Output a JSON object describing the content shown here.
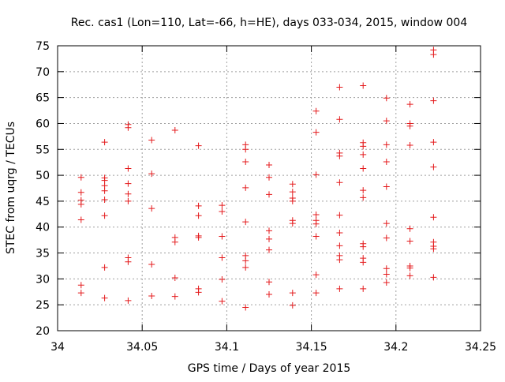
{
  "chart_data": {
    "type": "scatter",
    "title": "Rec. cas1 (Lon=110, Lat=-66, h=HE), days 033-034, 2015, window 004",
    "xlabel": "GPS time / Days of year 2015",
    "ylabel": "STEC from uqrg / TECUs",
    "xlim": [
      34,
      34.25
    ],
    "ylim": [
      20,
      75
    ],
    "xticks": [
      34,
      34.05,
      34.1,
      34.15,
      34.2,
      34.25
    ],
    "xtick_labels": [
      "34",
      "34.05",
      "34.1",
      "34.15",
      "34.2",
      "34.25"
    ],
    "yticks": [
      20,
      25,
      30,
      35,
      40,
      45,
      50,
      55,
      60,
      65,
      70,
      75
    ],
    "ytick_labels": [
      "20",
      "25",
      "30",
      "35",
      "40",
      "45",
      "50",
      "55",
      "60",
      "65",
      "70",
      "75"
    ],
    "grid": true,
    "marker": "+",
    "color": "#e41a1c",
    "series": [
      {
        "name": "STEC",
        "points": [
          [
            34.0139,
            49.6
          ],
          [
            34.0139,
            46.7
          ],
          [
            34.0139,
            45.2
          ],
          [
            34.0139,
            44.4
          ],
          [
            34.0139,
            41.4
          ],
          [
            34.0139,
            28.8
          ],
          [
            34.0139,
            27.3
          ],
          [
            34.0278,
            56.4
          ],
          [
            34.0278,
            49.5
          ],
          [
            34.0278,
            49.0
          ],
          [
            34.0278,
            48.0
          ],
          [
            34.0278,
            47.0
          ],
          [
            34.0278,
            45.3
          ],
          [
            34.0278,
            42.2
          ],
          [
            34.0278,
            32.2
          ],
          [
            34.0278,
            26.3
          ],
          [
            34.0417,
            59.8
          ],
          [
            34.0417,
            59.2
          ],
          [
            34.0417,
            51.3
          ],
          [
            34.0417,
            48.4
          ],
          [
            34.0417,
            46.4
          ],
          [
            34.0417,
            45.0
          ],
          [
            34.0417,
            34.1
          ],
          [
            34.0417,
            33.3
          ],
          [
            34.0417,
            25.8
          ],
          [
            34.0556,
            56.8
          ],
          [
            34.0556,
            50.3
          ],
          [
            34.0556,
            43.6
          ],
          [
            34.0556,
            32.8
          ],
          [
            34.0556,
            26.7
          ],
          [
            34.0694,
            58.7
          ],
          [
            34.0694,
            38.0
          ],
          [
            34.0694,
            37.1
          ],
          [
            34.0694,
            30.2
          ],
          [
            34.0694,
            26.6
          ],
          [
            34.0833,
            55.7
          ],
          [
            34.0833,
            44.1
          ],
          [
            34.0833,
            42.2
          ],
          [
            34.0833,
            38.3
          ],
          [
            34.0833,
            38.0
          ],
          [
            34.0833,
            28.1
          ],
          [
            34.0833,
            27.4
          ],
          [
            34.0972,
            44.2
          ],
          [
            34.0972,
            43.0
          ],
          [
            34.0972,
            38.2
          ],
          [
            34.0972,
            34.1
          ],
          [
            34.0972,
            29.9
          ],
          [
            34.0972,
            25.7
          ],
          [
            34.1111,
            55.9
          ],
          [
            34.1111,
            55.0
          ],
          [
            34.1111,
            52.6
          ],
          [
            34.1111,
            47.6
          ],
          [
            34.1111,
            41.0
          ],
          [
            34.1111,
            34.5
          ],
          [
            34.1111,
            33.5
          ],
          [
            34.1111,
            32.2
          ],
          [
            34.1111,
            24.5
          ],
          [
            34.125,
            52.0
          ],
          [
            34.125,
            49.6
          ],
          [
            34.125,
            46.3
          ],
          [
            34.125,
            39.3
          ],
          [
            34.125,
            37.7
          ],
          [
            34.125,
            35.6
          ],
          [
            34.125,
            29.4
          ],
          [
            34.125,
            27.0
          ],
          [
            34.1389,
            48.3
          ],
          [
            34.1389,
            46.8
          ],
          [
            34.1389,
            45.6
          ],
          [
            34.1389,
            45.0
          ],
          [
            34.1389,
            41.3
          ],
          [
            34.1389,
            40.7
          ],
          [
            34.1389,
            27.3
          ],
          [
            34.1389,
            24.9
          ],
          [
            34.1528,
            62.4
          ],
          [
            34.1528,
            58.3
          ],
          [
            34.1528,
            50.1
          ],
          [
            34.1528,
            42.4
          ],
          [
            34.1528,
            41.3
          ],
          [
            34.1528,
            40.6
          ],
          [
            34.1528,
            38.2
          ],
          [
            34.1528,
            30.8
          ],
          [
            34.1528,
            27.3
          ],
          [
            34.1667,
            67.0
          ],
          [
            34.1667,
            60.8
          ],
          [
            34.1667,
            54.3
          ],
          [
            34.1667,
            53.7
          ],
          [
            34.1667,
            48.6
          ],
          [
            34.1667,
            42.3
          ],
          [
            34.1667,
            38.9
          ],
          [
            34.1667,
            36.4
          ],
          [
            34.1667,
            34.5
          ],
          [
            34.1667,
            33.7
          ],
          [
            34.1667,
            28.1
          ],
          [
            34.1806,
            67.3
          ],
          [
            34.1806,
            56.3
          ],
          [
            34.1806,
            55.6
          ],
          [
            34.1806,
            54.0
          ],
          [
            34.1806,
            51.3
          ],
          [
            34.1806,
            47.1
          ],
          [
            34.1806,
            45.7
          ],
          [
            34.1806,
            36.8
          ],
          [
            34.1806,
            36.2
          ],
          [
            34.1806,
            34.0
          ],
          [
            34.1806,
            33.2
          ],
          [
            34.1806,
            28.1
          ],
          [
            34.1944,
            64.9
          ],
          [
            34.1944,
            60.5
          ],
          [
            34.1944,
            55.9
          ],
          [
            34.1944,
            52.6
          ],
          [
            34.1944,
            47.8
          ],
          [
            34.1944,
            40.7
          ],
          [
            34.1944,
            37.9
          ],
          [
            34.1944,
            32.0
          ],
          [
            34.1944,
            30.9
          ],
          [
            34.1944,
            29.3
          ],
          [
            34.2083,
            63.7
          ],
          [
            34.2083,
            60.0
          ],
          [
            34.2083,
            59.5
          ],
          [
            34.2083,
            55.8
          ],
          [
            34.2083,
            39.7
          ],
          [
            34.2083,
            37.3
          ],
          [
            34.2083,
            32.5
          ],
          [
            34.2083,
            32.1
          ],
          [
            34.2083,
            30.6
          ],
          [
            34.2222,
            74.2
          ],
          [
            34.2222,
            73.3
          ],
          [
            34.2222,
            64.4
          ],
          [
            34.2222,
            56.4
          ],
          [
            34.2222,
            51.6
          ],
          [
            34.2222,
            41.9
          ],
          [
            34.2222,
            37.1
          ],
          [
            34.2222,
            36.3
          ],
          [
            34.2222,
            35.8
          ],
          [
            34.2222,
            30.3
          ]
        ]
      }
    ]
  }
}
